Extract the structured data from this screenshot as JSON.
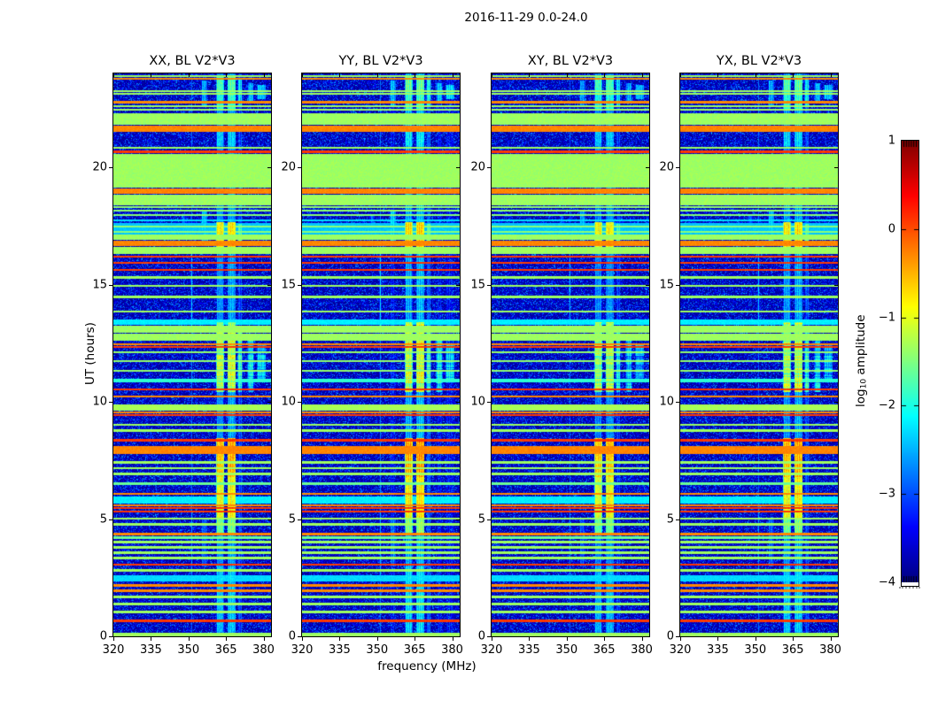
{
  "title": "2016-11-29 0.0-24.0",
  "xlabel": "frequency (MHz)",
  "ylabel": "UT (hours)",
  "panels": [
    {
      "title": "XX, BL V2*V3"
    },
    {
      "title": "YY, BL V2*V3"
    },
    {
      "title": "XY, BL V2*V3"
    },
    {
      "title": "YX, BL V2*V3"
    }
  ],
  "colorbar": {
    "label_log": "log",
    "label_sub": "10",
    "label_rest": " amplitude",
    "ticks": [
      "1",
      "0",
      "−1",
      "−2",
      "−3",
      "−4"
    ],
    "tick_values": [
      1,
      0,
      -1,
      -2,
      -3,
      -4
    ]
  },
  "chart_data": {
    "type": "heatmap",
    "title": "2016-11-29 0.0-24.0",
    "xlabel": "frequency (MHz)",
    "ylabel": "UT (hours)",
    "colorbar_label": "log10 amplitude",
    "colormap": "jet",
    "clim": [
      -4,
      1
    ],
    "x_range": [
      320,
      383
    ],
    "y_range": [
      0,
      24
    ],
    "x_ticks": [
      320,
      335,
      350,
      365,
      380
    ],
    "y_ticks": [
      0,
      5,
      10,
      15,
      20
    ],
    "panel_titles": [
      "XX, BL V2*V3",
      "YY, BL V2*V3",
      "XY, BL V2*V3",
      "YX, BL V2*V3"
    ],
    "panel_col_offset": [
      0,
      0.12,
      -0.08,
      0.03
    ],
    "background_level": -3.9,
    "bands": [
      [
        0.0,
        0.14,
        -1.35,
        0
      ],
      [
        0.62,
        0.72,
        0.1,
        0
      ],
      [
        1.0,
        1.1,
        -1.35,
        0
      ],
      [
        1.32,
        1.42,
        -1.35,
        0
      ],
      [
        1.62,
        1.72,
        -1.35,
        0
      ],
      [
        1.9,
        2.0,
        -0.3,
        0
      ],
      [
        2.12,
        2.22,
        -0.3,
        0
      ],
      [
        2.35,
        2.6,
        -2.3,
        1
      ],
      [
        2.76,
        2.86,
        -1.35,
        0
      ],
      [
        3.02,
        3.1,
        0.1,
        0
      ],
      [
        3.28,
        3.38,
        -1.35,
        0
      ],
      [
        3.52,
        3.62,
        -1.35,
        0
      ],
      [
        3.74,
        3.84,
        -1.35,
        0
      ],
      [
        3.97,
        4.07,
        -1.35,
        0
      ],
      [
        4.15,
        4.25,
        -1.6,
        1
      ],
      [
        4.3,
        4.4,
        -0.3,
        0
      ],
      [
        4.72,
        4.82,
        -1.35,
        0
      ],
      [
        4.97,
        5.07,
        -1.35,
        0
      ],
      [
        5.27,
        5.35,
        0.1,
        0
      ],
      [
        5.42,
        5.5,
        0.1,
        0
      ],
      [
        5.54,
        5.62,
        -0.3,
        0
      ],
      [
        5.66,
        5.96,
        -2.2,
        1
      ],
      [
        6.02,
        6.12,
        -0.3,
        0
      ],
      [
        6.47,
        6.55,
        -1.6,
        0
      ],
      [
        6.87,
        6.97,
        -1.35,
        0
      ],
      [
        7.12,
        7.22,
        -1.35,
        0
      ],
      [
        7.37,
        7.47,
        -1.35,
        0
      ],
      [
        7.78,
        8.12,
        -0.28,
        0
      ],
      [
        8.32,
        8.4,
        0.1,
        0
      ],
      [
        8.72,
        8.82,
        -1.35,
        0
      ],
      [
        8.97,
        9.07,
        -1.35,
        0
      ],
      [
        9.38,
        9.48,
        0.1,
        0
      ],
      [
        9.5,
        9.57,
        -0.3,
        0
      ],
      [
        9.62,
        9.9,
        -1.3,
        0
      ],
      [
        10.18,
        10.28,
        -0.3,
        0
      ],
      [
        10.5,
        10.58,
        0.1,
        0
      ],
      [
        10.82,
        11.0,
        -1.9,
        1
      ],
      [
        11.28,
        11.36,
        -1.4,
        0
      ],
      [
        11.68,
        11.76,
        -1.4,
        0
      ],
      [
        12.08,
        12.16,
        -1.4,
        0
      ],
      [
        12.3,
        12.38,
        0.1,
        0
      ],
      [
        12.42,
        12.5,
        -0.3,
        0
      ],
      [
        12.6,
        12.9,
        -1.35,
        0
      ],
      [
        12.95,
        13.25,
        -1.35,
        0
      ],
      [
        13.28,
        13.5,
        -2.2,
        1
      ],
      [
        13.8,
        13.9,
        -1.35,
        0
      ],
      [
        14.42,
        14.52,
        -1.35,
        0
      ],
      [
        14.9,
        15.0,
        -1.35,
        0
      ],
      [
        15.25,
        15.35,
        -1.35,
        0
      ],
      [
        15.58,
        15.66,
        0.1,
        0
      ],
      [
        15.88,
        15.96,
        0.1,
        0
      ],
      [
        16.16,
        16.24,
        0.1,
        0
      ],
      [
        16.3,
        16.6,
        -1.35,
        0
      ],
      [
        16.66,
        16.88,
        -0.28,
        0
      ],
      [
        16.92,
        17.12,
        -1.35,
        0
      ],
      [
        17.12,
        17.62,
        -2.4,
        1
      ],
      [
        17.2,
        17.27,
        -1.45,
        1
      ],
      [
        17.45,
        17.52,
        -1.45,
        1
      ],
      [
        17.7,
        17.78,
        -2.3,
        1
      ],
      [
        17.92,
        18.0,
        -1.45,
        0
      ],
      [
        18.1,
        18.2,
        -1.4,
        0
      ],
      [
        18.26,
        18.34,
        -1.4,
        0
      ],
      [
        18.38,
        18.82,
        -1.35,
        0
      ],
      [
        18.86,
        19.1,
        -0.28,
        0
      ],
      [
        19.14,
        20.56,
        -1.35,
        0
      ],
      [
        20.62,
        20.7,
        0.1,
        0
      ],
      [
        20.78,
        20.88,
        -1.35,
        0
      ],
      [
        21.5,
        21.78,
        -0.28,
        0
      ],
      [
        21.8,
        22.32,
        -1.35,
        0
      ],
      [
        22.4,
        22.48,
        -1.35,
        0
      ],
      [
        22.56,
        22.64,
        -1.35,
        0
      ],
      [
        22.72,
        22.82,
        -0.3,
        0
      ],
      [
        23.1,
        23.18,
        -1.35,
        0
      ],
      [
        23.22,
        23.3,
        -1.35,
        0
      ],
      [
        23.72,
        23.8,
        -0.3,
        0
      ],
      [
        23.84,
        23.92,
        -1.35,
        0
      ]
    ],
    "columns": [
      {
        "f": [
          361.0,
          364.3
        ],
        "base": -2.7,
        "segs": [
          [
            6.8,
            8.45,
            -0.6
          ],
          [
            5.0,
            6.8,
            -1.0
          ],
          [
            4.3,
            5.0,
            -1.6
          ],
          [
            10.4,
            13.4,
            -1.35
          ],
          [
            16.6,
            17.65,
            -0.85
          ],
          [
            20.9,
            21.5,
            -2.35
          ],
          [
            23.25,
            23.85,
            -1.75
          ],
          [
            22.5,
            23.25,
            -2.0
          ],
          [
            0.2,
            3.0,
            -2.45
          ]
        ]
      },
      {
        "f": [
          365.5,
          369.0
        ],
        "base": -2.6,
        "segs": [
          [
            6.8,
            8.45,
            -0.5
          ],
          [
            5.0,
            6.8,
            -0.9
          ],
          [
            4.3,
            5.0,
            -1.5
          ],
          [
            10.4,
            13.4,
            -1.25
          ],
          [
            16.6,
            17.65,
            -0.8
          ],
          [
            20.9,
            21.5,
            -2.3
          ],
          [
            23.25,
            23.85,
            -1.7
          ],
          [
            22.5,
            23.25,
            -1.9
          ],
          [
            0.2,
            3.0,
            -2.4
          ]
        ]
      },
      {
        "f": [
          369.6,
          371.6
        ],
        "base": -3.1,
        "segs": [
          [
            10.4,
            13.0,
            -2.0
          ],
          [
            16.8,
            17.6,
            -1.8
          ],
          [
            22.6,
            23.8,
            -2.2
          ]
        ]
      },
      {
        "f": [
          373.6,
          376.2
        ],
        "base": -3.6,
        "segs": [
          [
            10.4,
            12.6,
            -2.3
          ],
          [
            22.8,
            23.6,
            -2.5
          ]
        ]
      },
      {
        "f": [
          377.2,
          381.0
        ],
        "base": -3.6,
        "segs": [
          [
            11.0,
            12.5,
            -2.5
          ],
          [
            22.9,
            23.5,
            -2.45
          ]
        ]
      },
      {
        "f": [
          350.8,
          351.7
        ],
        "base": -2.9,
        "segs": [
          [
            13.0,
            16.5,
            -2.35
          ],
          [
            2.5,
            5.5,
            -2.6
          ]
        ]
      },
      {
        "f": [
          352.4,
          353.1
        ],
        "base": -3.6,
        "segs": [
          [
            3.0,
            5.5,
            -2.9
          ]
        ]
      },
      {
        "f": [
          355.0,
          357.6
        ],
        "base": -3.6,
        "segs": [
          [
            16.8,
            18.2,
            -2.5
          ],
          [
            3.0,
            5.0,
            -3.0
          ],
          [
            22.6,
            23.7,
            -2.6
          ]
        ]
      },
      {
        "f": [
          347.0,
          349.0
        ],
        "base": -3.7,
        "segs": [
          [
            17.0,
            18.0,
            -3.0
          ]
        ]
      }
    ]
  }
}
